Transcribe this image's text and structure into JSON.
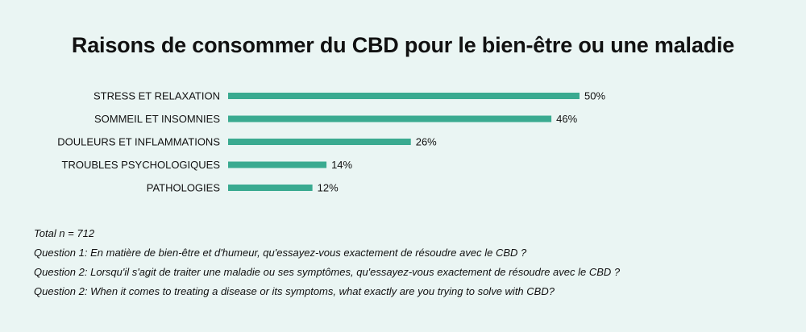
{
  "chart_data": {
    "type": "bar",
    "orientation": "horizontal",
    "title": "Raisons de consommer du CBD pour le bien-être ou une maladie",
    "categories": [
      "STRESS ET RELAXATION",
      "SOMMEIL ET INSOMNIES",
      "DOULEURS ET INFLAMMATIONS",
      "TROUBLES PSYCHOLOGIQUES",
      "PATHOLOGIES"
    ],
    "values": [
      50,
      46,
      26,
      14,
      12
    ],
    "value_labels": [
      "50%",
      "46%",
      "26%",
      "14%",
      "12%"
    ],
    "unit": "%",
    "bar_color": "#3aaa90",
    "xlim": [
      0,
      50
    ],
    "grid": false,
    "legend": "none"
  },
  "notes": {
    "total": "Total n = 712",
    "question_1_fr": "Question 1: En matière de bien-être et d'humeur, qu'essayez-vous exactement de résoudre avec le CBD ?",
    "question_2_fr": "Question 2: Lorsqu'il s'agit de traiter une maladie ou ses symptômes, qu'essayez-vous exactement de résoudre avec le CBD ?",
    "question_2_en": "Question 2: When it comes to treating a disease or its symptoms, what exactly are you trying to solve with CBD?"
  }
}
